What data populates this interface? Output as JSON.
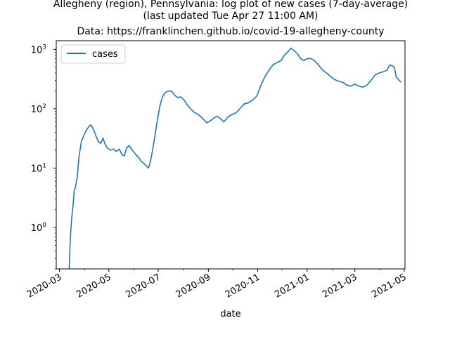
{
  "chart_data": {
    "type": "line",
    "title_lines": [
      "Allegheny (region), Pennsylvania: log plot of new cases (7-day-average)",
      "(last updated Tue Apr 27 11:00 AM)",
      "Data: https://franklinchen.github.io/covid-19-allegheny-county"
    ],
    "xlabel": "date",
    "ylabel": "",
    "y_scale": "log",
    "xlim": [
      "2020-02-26",
      "2021-05-02"
    ],
    "ylim": [
      0.2,
      1400
    ],
    "x_ticks": [
      "2020-03",
      "2020-05",
      "2020-07",
      "2020-09",
      "2020-11",
      "2021-01",
      "2021-03",
      "2021-05"
    ],
    "y_ticks": [
      {
        "value": 1,
        "label_base": "10",
        "label_exp": "0"
      },
      {
        "value": 10,
        "label_base": "10",
        "label_exp": "1"
      },
      {
        "value": 100,
        "label_base": "10",
        "label_exp": "2"
      },
      {
        "value": 1000,
        "label_base": "10",
        "label_exp": "3"
      }
    ],
    "grid": false,
    "legend_position": "top-left",
    "series": [
      {
        "name": "cases",
        "color": "#1f77b4",
        "points": [
          [
            "2020-03-13",
            0.2
          ],
          [
            "2020-03-14",
            0.5
          ],
          [
            "2020-03-15",
            0.9
          ],
          [
            "2020-03-16",
            1.4
          ],
          [
            "2020-03-18",
            2.5
          ],
          [
            "2020-03-19",
            4
          ],
          [
            "2020-03-21",
            5
          ],
          [
            "2020-03-23",
            7
          ],
          [
            "2020-03-25",
            15
          ],
          [
            "2020-03-28",
            28
          ],
          [
            "2020-04-01",
            38
          ],
          [
            "2020-04-04",
            45
          ],
          [
            "2020-04-07",
            52
          ],
          [
            "2020-04-09",
            53
          ],
          [
            "2020-04-12",
            45
          ],
          [
            "2020-04-15",
            35
          ],
          [
            "2020-04-18",
            28
          ],
          [
            "2020-04-21",
            26
          ],
          [
            "2020-04-24",
            32
          ],
          [
            "2020-04-26",
            26
          ],
          [
            "2020-04-29",
            22
          ],
          [
            "2020-05-03",
            20
          ],
          [
            "2020-05-07",
            21
          ],
          [
            "2020-05-10",
            19
          ],
          [
            "2020-05-14",
            21
          ],
          [
            "2020-05-17",
            17
          ],
          [
            "2020-05-20",
            16
          ],
          [
            "2020-05-23",
            22
          ],
          [
            "2020-05-26",
            24
          ],
          [
            "2020-05-30",
            20
          ],
          [
            "2020-06-03",
            17
          ],
          [
            "2020-06-07",
            15
          ],
          [
            "2020-06-10",
            13
          ],
          [
            "2020-06-13",
            12
          ],
          [
            "2020-06-16",
            11
          ],
          [
            "2020-06-19",
            10
          ],
          [
            "2020-06-22",
            14
          ],
          [
            "2020-06-24",
            20
          ],
          [
            "2020-06-27",
            35
          ],
          [
            "2020-06-30",
            65
          ],
          [
            "2020-07-03",
            110
          ],
          [
            "2020-07-06",
            155
          ],
          [
            "2020-07-09",
            185
          ],
          [
            "2020-07-12",
            195
          ],
          [
            "2020-07-15",
            200
          ],
          [
            "2020-07-18",
            195
          ],
          [
            "2020-07-21",
            170
          ],
          [
            "2020-07-25",
            155
          ],
          [
            "2020-07-29",
            158
          ],
          [
            "2020-08-02",
            140
          ],
          [
            "2020-08-06",
            115
          ],
          [
            "2020-08-10",
            100
          ],
          [
            "2020-08-14",
            88
          ],
          [
            "2020-08-18",
            82
          ],
          [
            "2020-08-22",
            75
          ],
          [
            "2020-08-26",
            66
          ],
          [
            "2020-08-30",
            58
          ],
          [
            "2020-09-03",
            62
          ],
          [
            "2020-09-08",
            70
          ],
          [
            "2020-09-12",
            75
          ],
          [
            "2020-09-16",
            68
          ],
          [
            "2020-09-20",
            60
          ],
          [
            "2020-09-25",
            72
          ],
          [
            "2020-09-30",
            80
          ],
          [
            "2020-10-05",
            85
          ],
          [
            "2020-10-10",
            100
          ],
          [
            "2020-10-15",
            120
          ],
          [
            "2020-10-20",
            125
          ],
          [
            "2020-10-26",
            140
          ],
          [
            "2020-10-31",
            165
          ],
          [
            "2020-11-05",
            250
          ],
          [
            "2020-11-10",
            350
          ],
          [
            "2020-11-15",
            450
          ],
          [
            "2020-11-20",
            550
          ],
          [
            "2020-11-25",
            600
          ],
          [
            "2020-11-30",
            650
          ],
          [
            "2020-12-04",
            800
          ],
          [
            "2020-12-08",
            900
          ],
          [
            "2020-12-12",
            1050
          ],
          [
            "2020-12-16",
            950
          ],
          [
            "2020-12-20",
            850
          ],
          [
            "2020-12-24",
            700
          ],
          [
            "2020-12-28",
            650
          ],
          [
            "2021-01-01",
            700
          ],
          [
            "2021-01-06",
            700
          ],
          [
            "2021-01-10",
            650
          ],
          [
            "2021-01-15",
            550
          ],
          [
            "2021-01-20",
            450
          ],
          [
            "2021-01-25",
            400
          ],
          [
            "2021-01-30",
            350
          ],
          [
            "2021-02-04",
            310
          ],
          [
            "2021-02-09",
            290
          ],
          [
            "2021-02-14",
            280
          ],
          [
            "2021-02-19",
            250
          ],
          [
            "2021-02-24",
            240
          ],
          [
            "2021-03-01",
            260
          ],
          [
            "2021-03-06",
            240
          ],
          [
            "2021-03-11",
            230
          ],
          [
            "2021-03-16",
            250
          ],
          [
            "2021-03-21",
            300
          ],
          [
            "2021-03-26",
            370
          ],
          [
            "2021-03-31",
            400
          ],
          [
            "2021-04-05",
            420
          ],
          [
            "2021-04-10",
            450
          ],
          [
            "2021-04-13",
            550
          ],
          [
            "2021-04-16",
            530
          ],
          [
            "2021-04-19",
            500
          ],
          [
            "2021-04-21",
            350
          ],
          [
            "2021-04-23",
            320
          ],
          [
            "2021-04-25",
            300
          ],
          [
            "2021-04-27",
            280
          ]
        ]
      }
    ]
  }
}
